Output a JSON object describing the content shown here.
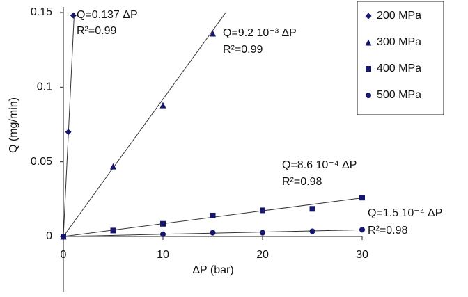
{
  "chart_data": {
    "type": "scatter",
    "x_label": "ΔP (bar)",
    "y_label": "Q (mg/min)",
    "xlim": [
      0,
      30
    ],
    "ylim": [
      0,
      0.15
    ],
    "xticks": [
      0,
      10,
      20,
      30
    ],
    "yticks": [
      0,
      0.05,
      0.1,
      0.15
    ],
    "legend": "upper right",
    "series": [
      {
        "name": "200 MPa",
        "marker": "diamond",
        "color": "#16166b",
        "x": [
          0,
          0.5,
          1
        ],
        "values": [
          0,
          0.07,
          0.148
        ],
        "slope": 0.137,
        "equation": "Q=0.137 ΔP",
        "r2": "R²=0.99"
      },
      {
        "name": "300 MPa",
        "marker": "triangle",
        "color": "#16166b",
        "x": [
          0,
          5,
          10,
          15
        ],
        "values": [
          0,
          0.047,
          0.088,
          0.136
        ],
        "slope": 0.0092,
        "equation": "Q=9.2 10⁻³ ΔP",
        "r2": "R²=0.99"
      },
      {
        "name": "400 MPa",
        "marker": "square",
        "color": "#16166b",
        "x": [
          0,
          5,
          10,
          15,
          20,
          25,
          30
        ],
        "values": [
          0,
          0.004,
          0.0085,
          0.014,
          0.0175,
          0.0185,
          0.026
        ],
        "slope": 0.00086,
        "equation": "Q=8.6 10⁻⁴ ΔP",
        "r2": "R²=0.98"
      },
      {
        "name": "500 MPa",
        "marker": "circle",
        "color": "#16166b",
        "x": [
          0,
          10,
          15,
          20,
          25,
          30
        ],
        "values": [
          0,
          0.0015,
          0.0025,
          0.0025,
          0.0035,
          0.0045
        ],
        "slope": 0.00015,
        "equation": "Q=1.5 10⁻⁴ ΔP",
        "r2": "R²=0.98"
      }
    ]
  }
}
